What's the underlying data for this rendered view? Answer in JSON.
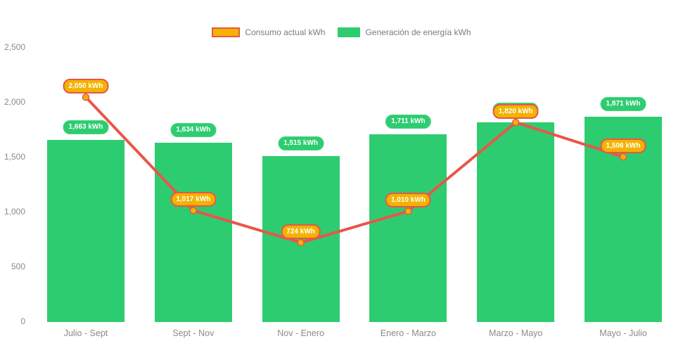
{
  "legend": {
    "consumption_label": "Consumo actual kWh",
    "generation_label": "Generación de energía kWh"
  },
  "colors": {
    "green": "#2ecc71",
    "greenBorder": "#44d681",
    "gold": "#f3b301",
    "red": "#e8564a",
    "axis": "#8a8a8a",
    "legendText": "#7b7b7b",
    "labelText": "#ffffff"
  },
  "chart_data": {
    "type": "bar+line",
    "title": "",
    "xlabel": "",
    "ylabel": "",
    "grid": false,
    "legend_position": "top",
    "categories": [
      "Julio - Sept",
      "Sept - Nov",
      "Nov - Enero",
      "Enero - Marzo",
      "Marzo - Mayo",
      "Mayo - Julio"
    ],
    "series": [
      {
        "name": "Generación de energía kWh",
        "type": "bar",
        "color": "#2ecc71",
        "values": [
          1663,
          1634,
          1515,
          1711,
          1820,
          1871
        ],
        "value_labels": [
          "1,663 kWh",
          "1,634 kWh",
          "1,515 kWh",
          "1,711 kWh",
          "1,820 kWh",
          "1,871 kWh"
        ]
      },
      {
        "name": "Consumo actual kWh",
        "type": "line",
        "color": "#e8564a",
        "marker_color": "#f3b301",
        "values": [
          2050,
          1017,
          724,
          1010,
          1820,
          1506
        ],
        "value_labels": [
          "2,050 kWh",
          "1,017 kWh",
          "724 kWh",
          "1,010 kWh",
          "1,820 kWh",
          "1,506 kWh"
        ]
      }
    ],
    "ylim": [
      0,
      2500
    ],
    "yticks": [
      {
        "value": 0,
        "label": "0"
      },
      {
        "value": 500,
        "label": "500"
      },
      {
        "value": 1000,
        "label": "1,000"
      },
      {
        "value": 1500,
        "label": "1,500"
      },
      {
        "value": 2000,
        "label": "2,000"
      },
      {
        "value": 2500,
        "label": "2,500"
      }
    ]
  }
}
